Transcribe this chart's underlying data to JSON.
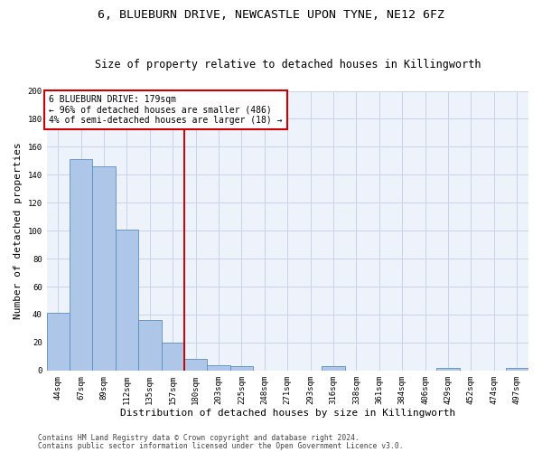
{
  "title": "6, BLUEBURN DRIVE, NEWCASTLE UPON TYNE, NE12 6FZ",
  "subtitle": "Size of property relative to detached houses in Killingworth",
  "xlabel": "Distribution of detached houses by size in Killingworth",
  "ylabel": "Number of detached properties",
  "bar_labels": [
    "44sqm",
    "67sqm",
    "89sqm",
    "112sqm",
    "135sqm",
    "157sqm",
    "180sqm",
    "203sqm",
    "225sqm",
    "248sqm",
    "271sqm",
    "293sqm",
    "316sqm",
    "338sqm",
    "361sqm",
    "384sqm",
    "406sqm",
    "429sqm",
    "452sqm",
    "474sqm",
    "497sqm"
  ],
  "bar_values": [
    41,
    151,
    146,
    101,
    36,
    20,
    8,
    4,
    3,
    0,
    0,
    0,
    3,
    0,
    0,
    0,
    0,
    2,
    0,
    0,
    2
  ],
  "bar_color": "#aec6e8",
  "bar_edge_color": "#5a8fc0",
  "vline_index": 6,
  "vline_color": "#cc0000",
  "annotation_line1": "6 BLUEBURN DRIVE: 179sqm",
  "annotation_line2": "← 96% of detached houses are smaller (486)",
  "annotation_line3": "4% of semi-detached houses are larger (18) →",
  "annotation_box_color": "#cc0000",
  "grid_color": "#c8d4e8",
  "background_color": "#eef2fa",
  "footer_line1": "Contains HM Land Registry data © Crown copyright and database right 2024.",
  "footer_line2": "Contains public sector information licensed under the Open Government Licence v3.0.",
  "ylim": [
    0,
    200
  ],
  "yticks": [
    0,
    20,
    40,
    60,
    80,
    100,
    120,
    140,
    160,
    180,
    200
  ],
  "title_fontsize": 9.5,
  "subtitle_fontsize": 8.5,
  "tick_fontsize": 6.5,
  "ylabel_fontsize": 8,
  "xlabel_fontsize": 8,
  "annotation_fontsize": 7,
  "footer_fontsize": 5.8
}
